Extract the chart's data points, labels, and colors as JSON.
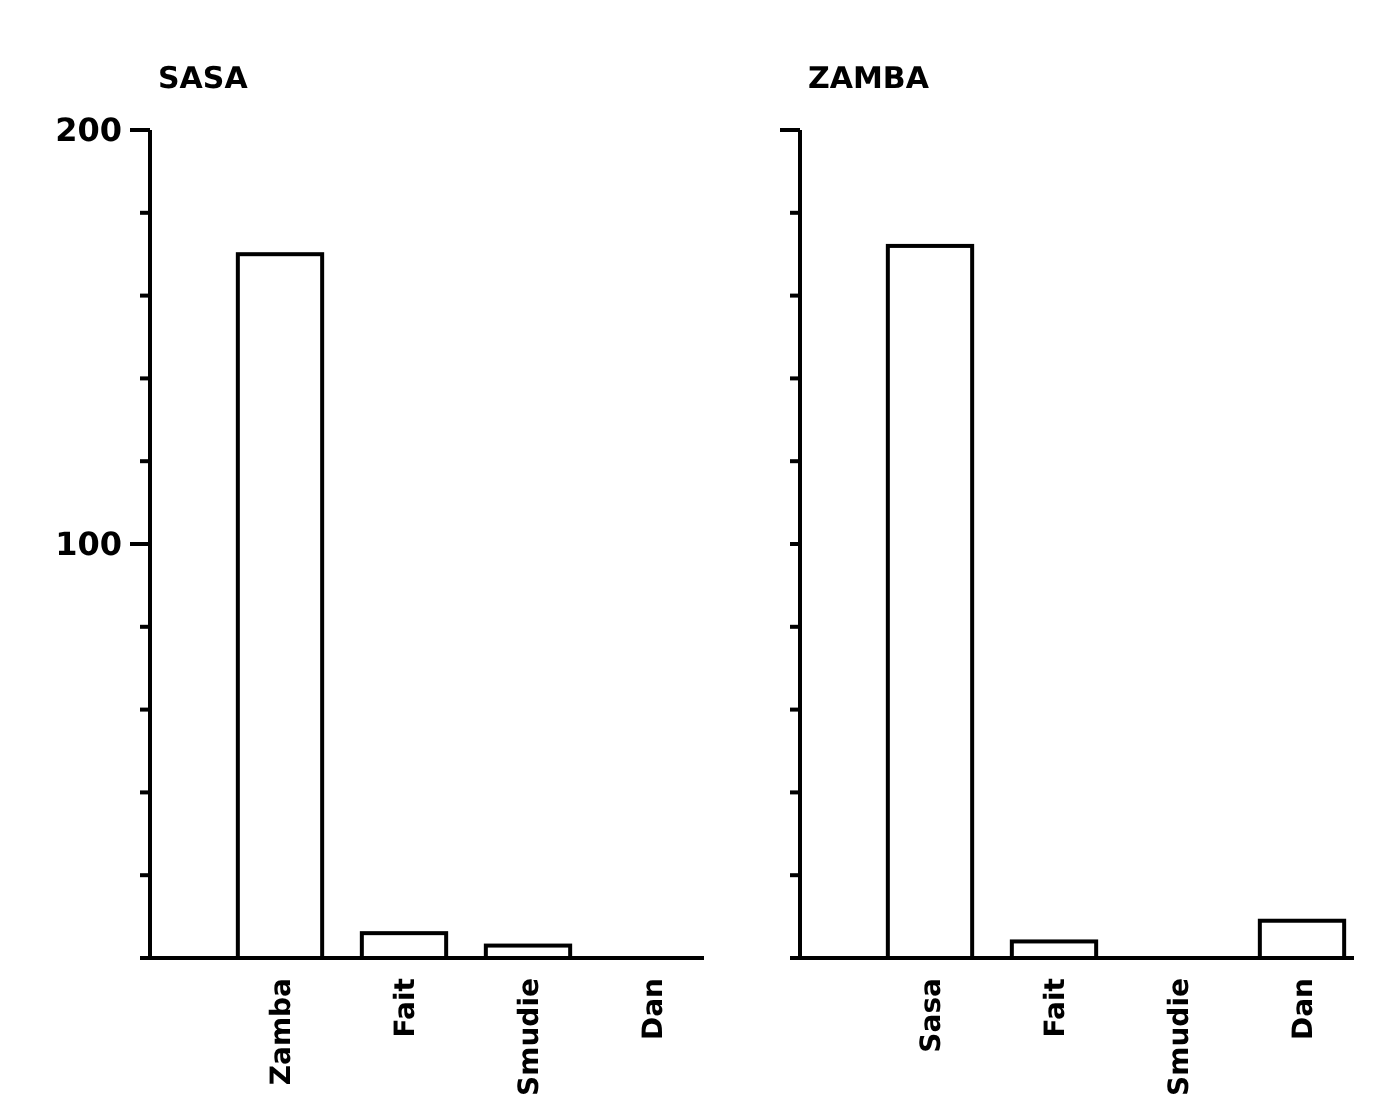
{
  "chart_data": [
    {
      "type": "bar",
      "title": "SASA",
      "categories": [
        "Zamba",
        "Fait",
        "Smudie",
        "Dan"
      ],
      "values": [
        170,
        6,
        3,
        0
      ],
      "color": "#ffffff",
      "ylim": [
        0,
        200
      ],
      "yticks": [
        {
          "value": 0,
          "label": null
        },
        {
          "value": 20,
          "label": null
        },
        {
          "value": 40,
          "label": null
        },
        {
          "value": 60,
          "label": null
        },
        {
          "value": 80,
          "label": null
        },
        100,
        {
          "value": 120,
          "label": null
        },
        {
          "value": 140,
          "label": null
        },
        {
          "value": 160,
          "label": null
        },
        {
          "value": 180,
          "label": null
        },
        200
      ],
      "grid": false
    },
    {
      "type": "bar",
      "title": "ZAMBA",
      "categories": [
        "Sasa",
        "Fait",
        "Smudie",
        "Dan"
      ],
      "values": [
        172,
        4,
        0,
        9
      ],
      "color": "#ffffff",
      "ylim": [
        0,
        200
      ],
      "yticks": [
        {
          "value": 0,
          "label": null
        },
        {
          "value": 20,
          "label": null
        },
        {
          "value": 40,
          "label": null
        },
        {
          "value": 60,
          "label": null
        },
        {
          "value": 80,
          "label": null
        },
        {
          "value": 100,
          "label": null
        },
        {
          "value": 120,
          "label": null
        },
        {
          "value": 140,
          "label": null
        },
        {
          "value": 160,
          "label": null
        },
        {
          "value": 180,
          "label": null
        },
        {
          "value": 200,
          "label": null
        }
      ],
      "tick_labels": "x",
      "grid": false
    }
  ]
}
